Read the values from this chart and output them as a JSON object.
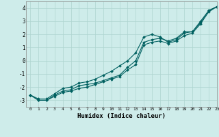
{
  "xlabel": "Humidex (Indice chaleur)",
  "background_color": "#ceecea",
  "grid_color": "#aed4d0",
  "line_color": "#006060",
  "xlim": [
    -0.5,
    23
  ],
  "ylim": [
    -3.5,
    4.5
  ],
  "yticks": [
    -3,
    -2,
    -1,
    0,
    1,
    2,
    3,
    4
  ],
  "xticks": [
    0,
    1,
    2,
    3,
    4,
    5,
    6,
    7,
    8,
    9,
    10,
    11,
    12,
    13,
    14,
    15,
    16,
    17,
    18,
    19,
    20,
    21,
    22,
    23
  ],
  "series1_x": [
    0,
    1,
    2,
    3,
    4,
    5,
    6,
    7,
    8,
    9,
    10,
    11,
    12,
    13,
    14,
    15,
    16,
    17,
    18,
    19,
    20,
    21,
    22,
    23
  ],
  "series1_y": [
    -2.6,
    -3.0,
    -3.0,
    -2.6,
    -2.3,
    -2.2,
    -1.9,
    -1.8,
    -1.7,
    -1.5,
    -1.3,
    -1.1,
    -0.5,
    0.0,
    1.4,
    1.6,
    1.7,
    1.5,
    1.7,
    2.2,
    2.2,
    2.9,
    3.8,
    4.1
  ],
  "series2_x": [
    0,
    1,
    2,
    3,
    4,
    5,
    6,
    7,
    8,
    9,
    10,
    11,
    12,
    13,
    14,
    15,
    16,
    17,
    18,
    19,
    20,
    21,
    22,
    23
  ],
  "series2_y": [
    -2.6,
    -2.9,
    -2.9,
    -2.5,
    -2.1,
    -2.0,
    -1.7,
    -1.6,
    -1.4,
    -1.1,
    -0.8,
    -0.4,
    0.0,
    0.6,
    1.8,
    2.0,
    1.8,
    1.4,
    1.6,
    2.1,
    2.2,
    3.0,
    3.8,
    4.1
  ],
  "series3_x": [
    0,
    1,
    2,
    3,
    4,
    5,
    6,
    7,
    8,
    9,
    10,
    11,
    12,
    13,
    14,
    15,
    16,
    17,
    18,
    19,
    20,
    21,
    22,
    23
  ],
  "series3_y": [
    -2.6,
    -3.0,
    -3.0,
    -2.7,
    -2.4,
    -2.3,
    -2.1,
    -2.0,
    -1.8,
    -1.6,
    -1.4,
    -1.2,
    -0.7,
    -0.3,
    1.2,
    1.4,
    1.5,
    1.3,
    1.5,
    1.9,
    2.1,
    2.8,
    3.7,
    4.1
  ]
}
